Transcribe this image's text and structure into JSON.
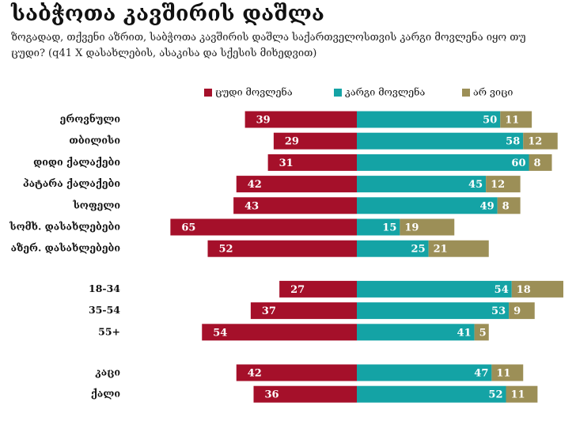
{
  "title": "საბჭოთა კავშირის დაშლა",
  "subtitle": "ზოგადად, თქვენი აზრით, საბჭოთა კავშირის დაშლა საქართველოსთვის კარგი მოვლენა იყო თუ ცუდი? (q41 X დასახლების, ასაკისა და სქესის მიხედვით)",
  "chart_data": {
    "type": "bar",
    "orientation": "horizontal-diverging",
    "title": "საბჭოთა კავშირის დაშლა",
    "legend_placement": "top",
    "groups": [
      [
        "ეროვნული",
        "თბილისი",
        "დიდი ქალაქები",
        "პატარა ქალაქები",
        "სოფელი",
        "სომხ. დასახლებები",
        "აზერ. დასახლებები"
      ],
      [
        "18-34",
        "35-54",
        "55+"
      ],
      [
        "კაცი",
        "ქალი"
      ]
    ],
    "categories": [
      "ეროვნული",
      "თბილისი",
      "დიდი ქალაქები",
      "პატარა ქალაქები",
      "სოფელი",
      "სომხ. დასახლებები",
      "აზერ. დასახლებები",
      "18-34",
      "35-54",
      "55+",
      "კაცი",
      "ქალი"
    ],
    "series": [
      {
        "name": "ცუდი მოვლენა",
        "color": "#a5102a",
        "values": [
          39,
          29,
          31,
          42,
          43,
          65,
          52,
          27,
          37,
          54,
          42,
          36
        ]
      },
      {
        "name": "კარგი მოვლენა",
        "color": "#14a3a5",
        "values": [
          50,
          58,
          60,
          45,
          49,
          15,
          25,
          54,
          53,
          41,
          47,
          52
        ]
      },
      {
        "name": "არ ვიცი",
        "color": "#9c8f57",
        "values": [
          11,
          12,
          8,
          12,
          8,
          19,
          21,
          18,
          9,
          5,
          11,
          11
        ]
      }
    ]
  }
}
